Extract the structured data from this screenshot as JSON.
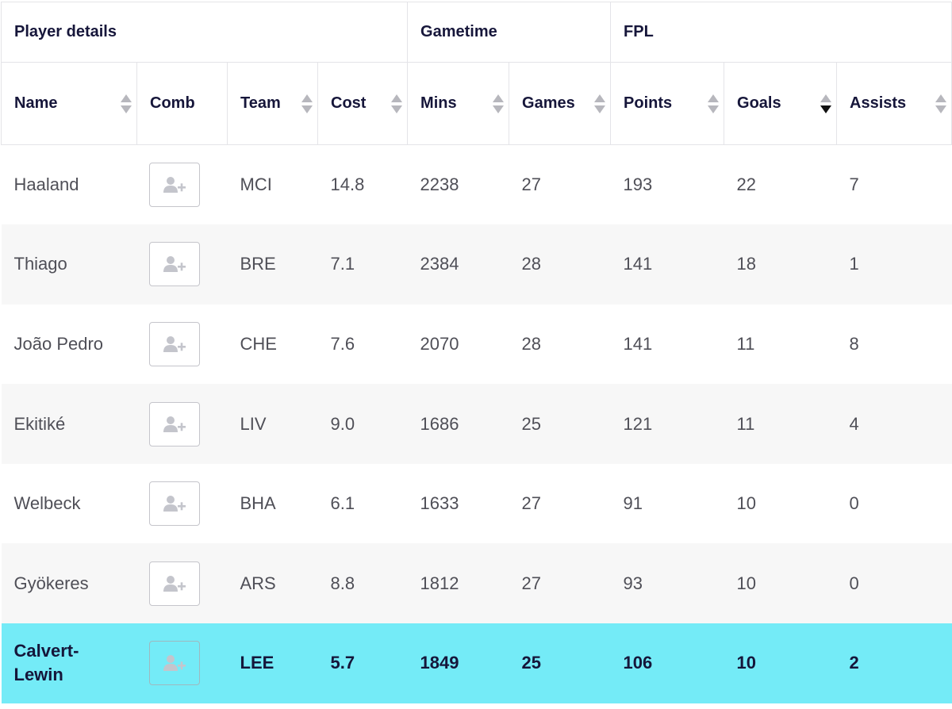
{
  "header_groups": [
    {
      "label": "Player details"
    },
    {
      "label": "Gametime"
    },
    {
      "label": "FPL"
    }
  ],
  "columns": [
    {
      "label": "Name",
      "sortable": true
    },
    {
      "label": "Comb",
      "sortable": false
    },
    {
      "label": "Team",
      "sortable": true
    },
    {
      "label": "Cost",
      "sortable": true
    },
    {
      "label": "Mins",
      "sortable": true
    },
    {
      "label": "Games",
      "sortable": true
    },
    {
      "label": "Points",
      "sortable": true
    },
    {
      "label": "Goals",
      "sortable": true,
      "sorted": "desc"
    },
    {
      "label": "Assists",
      "sortable": true
    }
  ],
  "rows": [
    {
      "name": "Haaland",
      "team": "MCI",
      "cost": "14.8",
      "mins": "2238",
      "games": "27",
      "points": "193",
      "goals": "22",
      "assists": "7"
    },
    {
      "name": "Thiago",
      "team": "BRE",
      "cost": "7.1",
      "mins": "2384",
      "games": "28",
      "points": "141",
      "goals": "18",
      "assists": "1"
    },
    {
      "name": "João Pedro",
      "team": "CHE",
      "cost": "7.6",
      "mins": "2070",
      "games": "28",
      "points": "141",
      "goals": "11",
      "assists": "8"
    },
    {
      "name": "Ekitiké",
      "team": "LIV",
      "cost": "9.0",
      "mins": "1686",
      "games": "25",
      "points": "121",
      "goals": "11",
      "assists": "4"
    },
    {
      "name": "Welbeck",
      "team": "BHA",
      "cost": "6.1",
      "mins": "1633",
      "games": "27",
      "points": "91",
      "goals": "10",
      "assists": "0"
    },
    {
      "name": "Gyökeres",
      "team": "ARS",
      "cost": "8.8",
      "mins": "1812",
      "games": "27",
      "points": "93",
      "goals": "10",
      "assists": "0"
    },
    {
      "name": "Calvert-\nLewin",
      "team": "LEE",
      "cost": "5.7",
      "mins": "1849",
      "games": "25",
      "points": "106",
      "goals": "10",
      "assists": "2",
      "highlighted": true
    }
  ],
  "comb_icon": "add-user-icon",
  "colors": {
    "header_text": "#16163a",
    "highlight_row": "#74ebf7",
    "alt_row": "#f7f7f7",
    "sort_active": "#111111",
    "sort_inactive": "#b7b7bd"
  }
}
